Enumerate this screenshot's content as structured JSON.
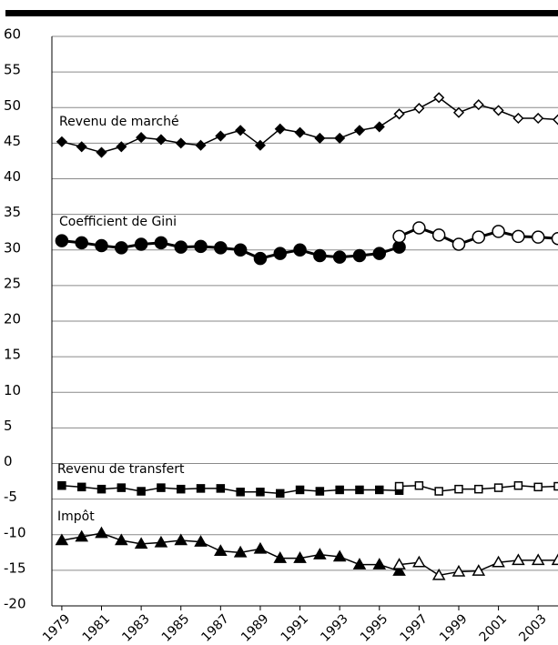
{
  "chart_data": {
    "type": "line",
    "xlim": [
      1978.5,
      2004
    ],
    "xticks": [
      1979,
      1981,
      1983,
      1985,
      1987,
      1989,
      1991,
      1993,
      1995,
      1997,
      1999,
      2001,
      2003
    ],
    "ylim": [
      -20,
      60
    ],
    "yticks": [
      -20,
      -15,
      -10,
      -5,
      0,
      5,
      10,
      15,
      20,
      25,
      30,
      35,
      40,
      45,
      50,
      55,
      60
    ],
    "grid": true,
    "color": "#000000",
    "series": [
      {
        "name": "Revenu de marché",
        "marker": "diamond",
        "x": [
          1979,
          1980,
          1981,
          1982,
          1983,
          1984,
          1985,
          1986,
          1987,
          1988,
          1989,
          1990,
          1991,
          1992,
          1993,
          1994,
          1995,
          1996
        ],
        "values": [
          45.2,
          44.5,
          43.7,
          44.5,
          45.8,
          45.5,
          45.0,
          44.7,
          46.0,
          46.8,
          44.7,
          47.0,
          46.5,
          45.7,
          45.7,
          46.8,
          47.3,
          49.1
        ],
        "x2": [
          1996,
          1997,
          1998,
          1999,
          2000,
          2001,
          2002,
          2003,
          2004
        ],
        "values2": [
          49.1,
          49.9,
          51.4,
          49.3,
          50.4,
          49.6,
          48.5,
          48.5,
          48.3
        ]
      },
      {
        "name": "Coefficient de Gini",
        "marker": "circle",
        "x": [
          1979,
          1980,
          1981,
          1982,
          1983,
          1984,
          1985,
          1986,
          1987,
          1988,
          1989,
          1990,
          1991,
          1992,
          1993,
          1994,
          1995,
          1996
        ],
        "values": [
          31.3,
          31.0,
          30.6,
          30.3,
          30.8,
          31.0,
          30.4,
          30.5,
          30.3,
          30.0,
          28.8,
          29.5,
          30.0,
          29.2,
          29.0,
          29.2,
          29.5,
          30.4
        ],
        "x2": [
          1996,
          1997,
          1998,
          1999,
          2000,
          2001,
          2002,
          2003,
          2004
        ],
        "values2": [
          31.9,
          33.1,
          32.1,
          30.8,
          31.8,
          32.6,
          31.9,
          31.8,
          31.6
        ]
      },
      {
        "name": "Revenu de transfert",
        "marker": "square",
        "x": [
          1979,
          1980,
          1981,
          1982,
          1983,
          1984,
          1985,
          1986,
          1987,
          1988,
          1989,
          1990,
          1991,
          1992,
          1993,
          1994,
          1995,
          1996
        ],
        "values": [
          -3.1,
          -3.3,
          -3.6,
          -3.4,
          -3.9,
          -3.4,
          -3.6,
          -3.5,
          -3.5,
          -4.0,
          -4.0,
          -4.2,
          -3.7,
          -3.9,
          -3.7,
          -3.7,
          -3.7,
          -3.8
        ],
        "x2": [
          1996,
          1997,
          1998,
          1999,
          2000,
          2001,
          2002,
          2003,
          2004
        ],
        "values2": [
          -3.2,
          -3.1,
          -3.9,
          -3.6,
          -3.6,
          -3.4,
          -3.1,
          -3.3,
          -3.2
        ]
      },
      {
        "name": "Impôt",
        "marker": "triangle",
        "x": [
          1979,
          1980,
          1981,
          1982,
          1983,
          1984,
          1985,
          1986,
          1987,
          1988,
          1989,
          1990,
          1991,
          1992,
          1993,
          1994,
          1995,
          1996
        ],
        "values": [
          -10.8,
          -10.3,
          -9.8,
          -10.8,
          -11.3,
          -11.1,
          -10.8,
          -11.0,
          -12.3,
          -12.5,
          -12.0,
          -13.3,
          -13.3,
          -12.8,
          -13.1,
          -14.2,
          -14.2,
          -15.1
        ],
        "x2": [
          1996,
          1997,
          1998,
          1999,
          2000,
          2001,
          2002,
          2003,
          2004
        ],
        "values2": [
          -14.2,
          -13.9,
          -15.7,
          -15.2,
          -15.1,
          -13.9,
          -13.6,
          -13.6,
          -13.6
        ]
      }
    ]
  }
}
